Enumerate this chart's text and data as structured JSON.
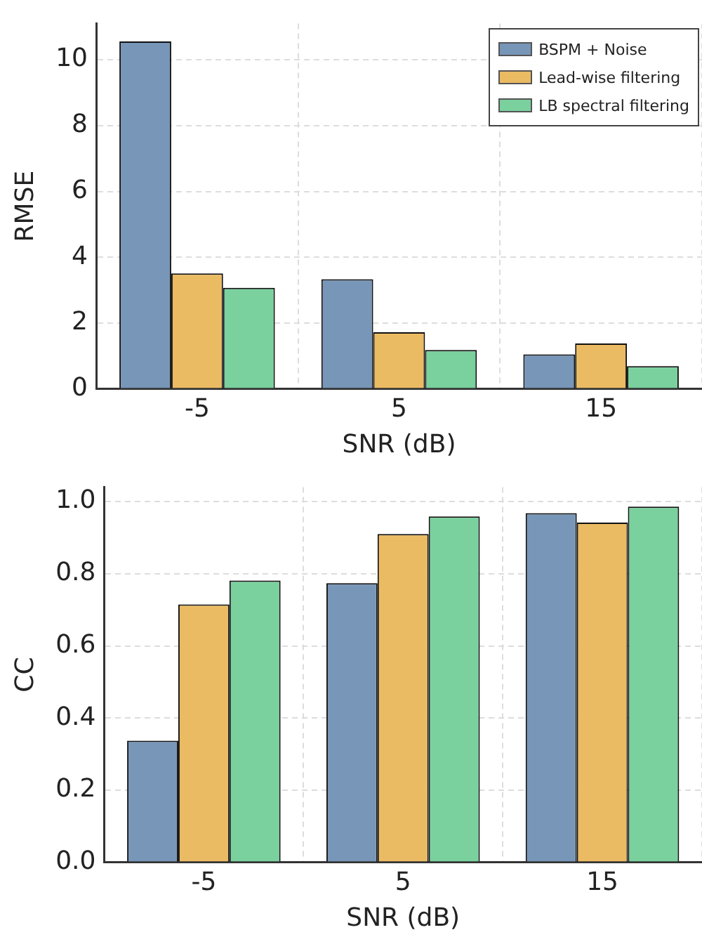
{
  "chart_data": [
    {
      "type": "bar",
      "categories": [
        "-5",
        "5",
        "15"
      ],
      "xlabel": "SNR (dB)",
      "ylabel": "RMSE",
      "ylim": [
        0,
        11.1
      ],
      "yticks": [
        0,
        2,
        4,
        6,
        8,
        10
      ],
      "grid": true,
      "legend": "top right",
      "series": [
        {
          "name": "BSPM + Noise",
          "color": "#7796b8",
          "values": [
            10.56,
            3.33,
            1.05
          ]
        },
        {
          "name": "Lead-wise filtering",
          "color": "#ebbb63",
          "values": [
            3.51,
            1.72,
            1.38
          ]
        },
        {
          "name": "LB spectral filtering",
          "color": "#7ad19e",
          "values": [
            3.07,
            1.18,
            0.69
          ]
        }
      ]
    },
    {
      "type": "bar",
      "categories": [
        "-5",
        "5",
        "15"
      ],
      "xlabel": "SNR (dB)",
      "ylabel": "CC",
      "ylim": [
        0,
        1.04
      ],
      "yticks": [
        {
          "value": 0,
          "label": "0.0"
        },
        {
          "value": 0.2,
          "label": "0.2"
        },
        {
          "value": 0.4,
          "label": "0.4"
        },
        {
          "value": 0.6,
          "label": "0.6"
        },
        {
          "value": 0.8,
          "label": "0.8"
        },
        {
          "value": 1,
          "label": "1.0"
        }
      ],
      "grid": true,
      "series": [
        {
          "color": "#7796b8",
          "values": [
            0.337,
            0.774,
            0.968
          ]
        },
        {
          "color": "#ebbb63",
          "values": [
            0.715,
            0.91,
            0.942
          ]
        },
        {
          "color": "#7ad19e",
          "values": [
            0.781,
            0.959,
            0.986
          ]
        }
      ]
    }
  ]
}
